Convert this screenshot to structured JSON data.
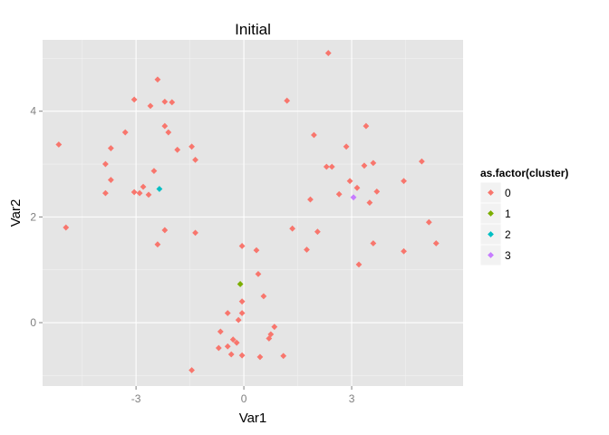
{
  "chart_data": {
    "type": "scatter",
    "title": "Initial",
    "xlabel": "Var1",
    "ylabel": "Var2",
    "xlim": [
      -5.6,
      6.1
    ],
    "ylim": [
      -1.2,
      5.35
    ],
    "x_ticks": [
      -3,
      0,
      3
    ],
    "y_ticks": [
      0,
      2,
      4
    ],
    "grid": true,
    "legend": {
      "title": "as.factor(cluster)",
      "placement": "right",
      "entries": [
        {
          "label": "0",
          "color": "#F8766D"
        },
        {
          "label": "1",
          "color": "#7CAE00"
        },
        {
          "label": "2",
          "color": "#00BFC4"
        },
        {
          "label": "3",
          "color": "#C77CFF"
        }
      ]
    },
    "series": [
      {
        "name": "0",
        "color": "#F8766D",
        "points": [
          [
            -5.15,
            3.37
          ],
          [
            -4.95,
            1.8
          ],
          [
            -3.85,
            3.0
          ],
          [
            -3.85,
            2.45
          ],
          [
            -3.7,
            3.3
          ],
          [
            -3.7,
            2.7
          ],
          [
            -3.3,
            3.6
          ],
          [
            -3.05,
            4.22
          ],
          [
            -3.05,
            2.47
          ],
          [
            -2.9,
            2.45
          ],
          [
            -2.8,
            2.57
          ],
          [
            -2.65,
            2.42
          ],
          [
            -2.6,
            4.1
          ],
          [
            -2.5,
            2.87
          ],
          [
            -2.4,
            4.6
          ],
          [
            -2.4,
            1.48
          ],
          [
            -2.2,
            4.18
          ],
          [
            -2.2,
            3.72
          ],
          [
            -2.2,
            1.75
          ],
          [
            -2.1,
            3.6
          ],
          [
            -2.0,
            4.17
          ],
          [
            -1.85,
            3.27
          ],
          [
            -1.45,
            3.33
          ],
          [
            -1.35,
            3.08
          ],
          [
            -1.35,
            1.7
          ],
          [
            -1.45,
            -0.9
          ],
          [
            -0.05,
            1.45
          ],
          [
            0.35,
            1.37
          ],
          [
            0.4,
            0.92
          ],
          [
            0.55,
            0.5
          ],
          [
            -0.05,
            0.4
          ],
          [
            -0.05,
            0.18
          ],
          [
            -0.15,
            0.05
          ],
          [
            -0.45,
            0.18
          ],
          [
            -0.65,
            -0.17
          ],
          [
            -0.7,
            -0.48
          ],
          [
            -0.45,
            -0.45
          ],
          [
            -0.3,
            -0.32
          ],
          [
            -0.2,
            -0.38
          ],
          [
            -0.35,
            -0.6
          ],
          [
            -0.05,
            -0.62
          ],
          [
            0.45,
            -0.65
          ],
          [
            0.7,
            -0.3
          ],
          [
            0.75,
            -0.22
          ],
          [
            0.85,
            -0.08
          ],
          [
            1.1,
            -0.63
          ],
          [
            1.2,
            4.2
          ],
          [
            1.35,
            1.78
          ],
          [
            1.75,
            1.38
          ],
          [
            1.85,
            2.33
          ],
          [
            1.95,
            3.55
          ],
          [
            2.05,
            1.72
          ],
          [
            2.3,
            2.95
          ],
          [
            2.35,
            5.1
          ],
          [
            2.45,
            2.95
          ],
          [
            2.65,
            2.43
          ],
          [
            2.85,
            3.33
          ],
          [
            2.95,
            2.68
          ],
          [
            3.15,
            2.55
          ],
          [
            3.2,
            1.1
          ],
          [
            3.35,
            2.97
          ],
          [
            3.4,
            3.72
          ],
          [
            3.5,
            2.27
          ],
          [
            3.6,
            1.5
          ],
          [
            3.6,
            3.02
          ],
          [
            3.7,
            2.48
          ],
          [
            4.45,
            2.68
          ],
          [
            4.45,
            1.35
          ],
          [
            4.95,
            3.05
          ],
          [
            5.15,
            1.9
          ],
          [
            5.35,
            1.5
          ]
        ]
      },
      {
        "name": "1",
        "color": "#7CAE00",
        "points": [
          [
            -0.1,
            0.73
          ]
        ]
      },
      {
        "name": "2",
        "color": "#00BFC4",
        "points": [
          [
            -2.35,
            2.53
          ]
        ]
      },
      {
        "name": "3",
        "color": "#C77CFF",
        "points": [
          [
            3.05,
            2.37
          ]
        ]
      }
    ]
  }
}
